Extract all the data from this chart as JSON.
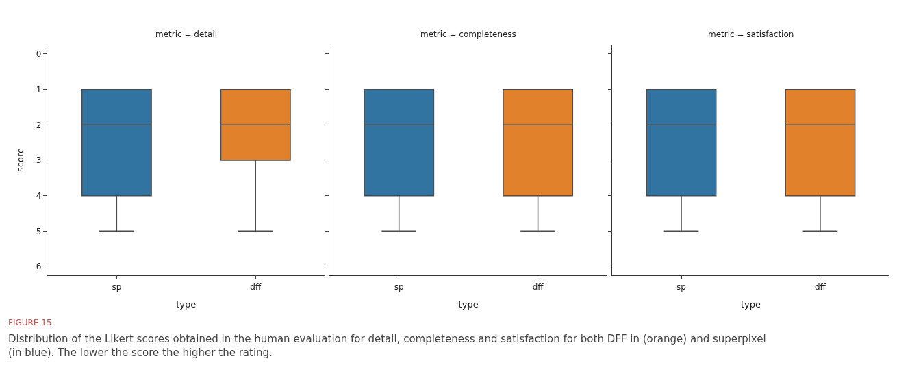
{
  "chart_data": [
    {
      "type": "box",
      "title": "metric = detail",
      "xlabel": "type",
      "ylabel": "score",
      "categories": [
        "sp",
        "dff"
      ],
      "colors": [
        "#3274a1",
        "#e1812c"
      ],
      "boxes": [
        {
          "low": 1,
          "q1": 1,
          "median": 2,
          "q3": 4,
          "high": 5
        },
        {
          "low": 1,
          "q1": 1,
          "median": 2,
          "q3": 3,
          "high": 5
        }
      ],
      "ylim": [
        6.26,
        -0.28
      ],
      "yticks": [
        0,
        1,
        2,
        3,
        4,
        5,
        6
      ],
      "annotations": [
        "FIGURE 15",
        "Distribution of the Likert scores obtained in the human evaluation for detail, completeness and satisfaction for both DFF in (orange) and superpixel (in blue). The lower the score the higher the rating."
      ]
    },
    {
      "type": "box",
      "title": "metric = completeness",
      "xlabel": "type",
      "categories": [
        "sp",
        "dff"
      ],
      "colors": [
        "#3274a1",
        "#e1812c"
      ],
      "boxes": [
        {
          "low": 1,
          "q1": 1,
          "median": 2,
          "q3": 4,
          "high": 5
        },
        {
          "low": 1,
          "q1": 1,
          "median": 2,
          "q3": 4,
          "high": 5
        }
      ],
      "ylim": [
        6.26,
        -0.28
      ],
      "yticks": [
        0,
        1,
        2,
        3,
        4,
        5,
        6
      ],
      "tick_labels": "x"
    },
    {
      "type": "box",
      "title": "metric = satisfaction",
      "xlabel": "type",
      "categories": [
        "sp",
        "dff"
      ],
      "colors": [
        "#3274a1",
        "#e1812c"
      ],
      "boxes": [
        {
          "low": 1,
          "q1": 1,
          "median": 2,
          "q3": 4,
          "high": 5
        },
        {
          "low": 1,
          "q1": 1,
          "median": 2,
          "q3": 4,
          "high": 5
        }
      ],
      "ylim": [
        6.26,
        -0.28
      ],
      "yticks": [
        0,
        1,
        2,
        3,
        4,
        5,
        6
      ],
      "tick_labels": "x"
    }
  ]
}
